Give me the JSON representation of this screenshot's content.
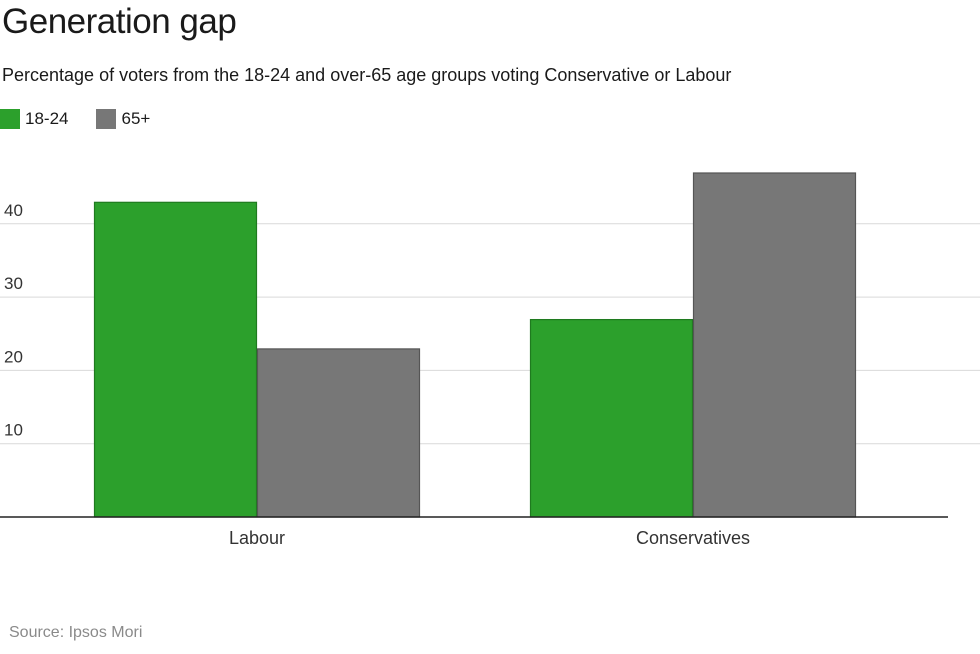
{
  "title": "Generation gap",
  "subtitle": "Percentage of voters from the 18-24 and over-65 age groups voting Conservative or Labour",
  "source": "Source: Ipsos Mori",
  "colors": {
    "series_1": "#2ca02c",
    "series_2": "#777777",
    "grid": "#d9d9d9",
    "axis": "#222222"
  },
  "chart_data": {
    "type": "bar",
    "categories": [
      "Labour",
      "Conservatives"
    ],
    "series": [
      {
        "name": "18-24",
        "values": [
          43,
          27
        ]
      },
      {
        "name": "65+",
        "values": [
          23,
          47
        ]
      }
    ],
    "yticks": [
      10,
      20,
      30,
      40
    ],
    "ylim": [
      0,
      50
    ],
    "grid": true,
    "legend": "top-left"
  }
}
